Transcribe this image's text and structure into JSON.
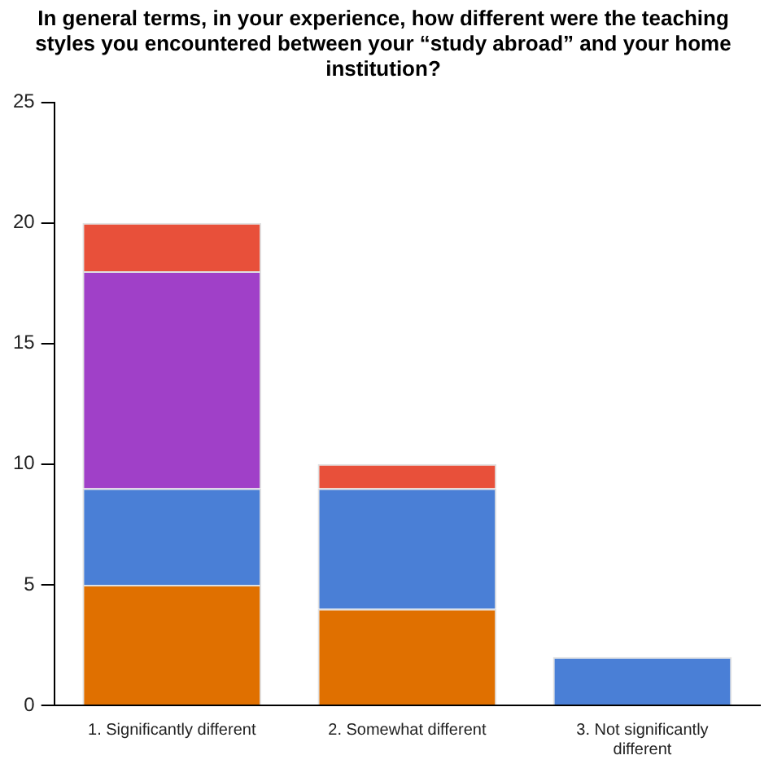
{
  "chart_data": {
    "type": "bar",
    "title": "In general terms, in your experience, how different were the teaching styles you encountered between your “study abroad” and your home institution?",
    "categories": [
      "1. Significantly different",
      "2. Somewhat different",
      "3. Not significantly different"
    ],
    "stacked": true,
    "series": [
      {
        "color": "#e07000",
        "values": [
          5,
          4,
          0
        ]
      },
      {
        "color": "#4a7fd6",
        "values": [
          4,
          5,
          2
        ]
      },
      {
        "color": "#a040c8",
        "values": [
          9,
          0,
          0
        ]
      },
      {
        "color": "#e8503a",
        "values": [
          2,
          1,
          0
        ]
      }
    ],
    "ylim": [
      0,
      25
    ],
    "yticks": [
      0,
      5,
      10,
      15,
      20,
      25
    ],
    "grid": false,
    "legend": false
  }
}
